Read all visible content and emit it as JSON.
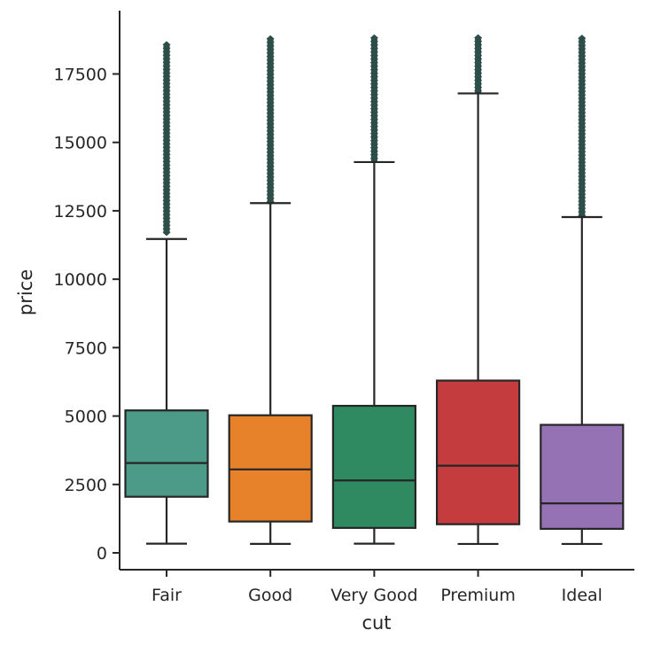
{
  "chart_data": {
    "type": "box",
    "xlabel": "cut",
    "ylabel": "price",
    "ylim": [
      -700,
      19600
    ],
    "yticks": [
      0,
      2500,
      5000,
      7500,
      10000,
      12500,
      15000,
      17500
    ],
    "ytick_labels": [
      "0",
      "2500",
      "5000",
      "7500",
      "10000",
      "12500",
      "15000",
      "17500"
    ],
    "categories": [
      "Fair",
      "Good",
      "Very Good",
      "Premium",
      "Ideal"
    ],
    "boxes": [
      {
        "category": "Fair",
        "color": "#4c9a88",
        "whisker_low": 337,
        "q1": 2050,
        "median": 3282,
        "q3": 5206,
        "whisker_high": 11470,
        "outlier_low": 11700,
        "outlier_high": 18574
      },
      {
        "category": "Good",
        "color": "#e8822a",
        "whisker_low": 327,
        "q1": 1145,
        "median": 3050,
        "q3": 5028,
        "whisker_high": 12780,
        "outlier_low": 12820,
        "outlier_high": 18788
      },
      {
        "category": "Very Good",
        "color": "#2f8a62",
        "whisker_low": 336,
        "q1": 912,
        "median": 2648,
        "q3": 5373,
        "whisker_high": 14280,
        "outlier_low": 14300,
        "outlier_high": 18818
      },
      {
        "category": "Premium",
        "color": "#c43c3e",
        "whisker_low": 326,
        "q1": 1046,
        "median": 3185,
        "q3": 6296,
        "whisker_high": 16790,
        "outlier_low": 16800,
        "outlier_high": 18823
      },
      {
        "category": "Ideal",
        "color": "#9572b4",
        "whisker_low": 326,
        "q1": 878,
        "median": 1810,
        "q3": 4678,
        "whisker_high": 12270,
        "outlier_low": 12300,
        "outlier_high": 18806
      }
    ],
    "line_color": "#262626",
    "outlier_color": "#2e4e4a",
    "grid": false,
    "legend": "none"
  }
}
